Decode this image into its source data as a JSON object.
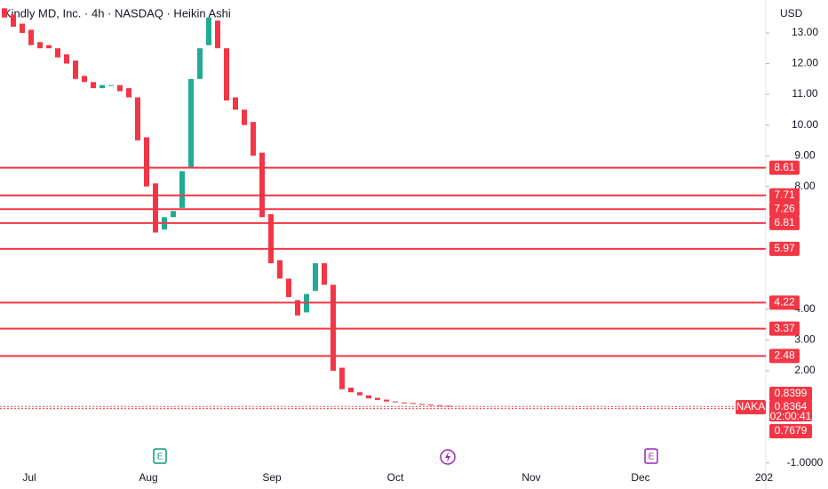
{
  "chart_data": {
    "type": "candlestick",
    "title": "Kindly MD, Inc. · 4h · NASDAQ · Heikin Ashi",
    "currency": "USD",
    "xtick_labels": [
      "Jul",
      "Aug",
      "Sep",
      "Oct",
      "Nov",
      "Dec",
      "202"
    ],
    "open": [
      13.8,
      13.6,
      13.3,
      13.1,
      12.7,
      12.6,
      12.5,
      12.3,
      12.1,
      11.6,
      11.4,
      11.2,
      11.3,
      11.3,
      11.2,
      10.9,
      9.6,
      8.1,
      6.6,
      7.0,
      7.3,
      8.6,
      11.5,
      12.6,
      13.4,
      12.5,
      10.9,
      10.5,
      10.1,
      9.1,
      7.1,
      5.6,
      5.0,
      4.3,
      3.9,
      4.6,
      5.5,
      4.8,
      2.1,
      1.45,
      1.3,
      1.2,
      1.12,
      1.06,
      1.0,
      0.97,
      0.95,
      0.92,
      0.9,
      0.88,
      0.86
    ],
    "close": [
      13.5,
      13.2,
      13.0,
      12.6,
      12.5,
      12.5,
      12.2,
      12.0,
      11.5,
      11.4,
      11.2,
      11.3,
      11.3,
      11.1,
      10.9,
      9.5,
      8.0,
      6.5,
      7.0,
      7.2,
      8.5,
      11.5,
      12.5,
      13.5,
      12.5,
      10.8,
      10.5,
      10.0,
      9.0,
      7.0,
      5.5,
      5.0,
      4.4,
      3.8,
      4.5,
      5.5,
      4.8,
      2.0,
      1.4,
      1.3,
      1.2,
      1.1,
      1.05,
      1.0,
      0.97,
      0.95,
      0.92,
      0.9,
      0.88,
      0.86,
      0.84
    ],
    "up_color": "#22ab94",
    "down_color": "#f23645",
    "levels": [
      8.61,
      7.71,
      7.26,
      6.81,
      5.97,
      4.22,
      3.37,
      2.48
    ],
    "level_color": "#f23645",
    "ylim": [
      -1.27,
      14.07
    ],
    "yticks": [
      {
        "value": 13,
        "label": "13.00"
      },
      {
        "value": 12,
        "label": "12.00"
      },
      {
        "value": 11,
        "label": "11.00"
      },
      {
        "value": 10,
        "label": "10.00"
      },
      {
        "value": 9,
        "label": "9.00"
      },
      {
        "value": 8,
        "label": "8.00"
      },
      {
        "value": 4,
        "label": "4.00"
      },
      {
        "value": 3,
        "label": "3.00"
      },
      {
        "value": 2,
        "label": "2.00"
      },
      {
        "value": -1,
        "label": "-1.0000"
      }
    ],
    "price_tags": [
      0.8399,
      0.8364,
      0.7679
    ],
    "symbol": "NAKA",
    "countdown": "02:00:41",
    "events": [
      "E",
      "E"
    ]
  }
}
